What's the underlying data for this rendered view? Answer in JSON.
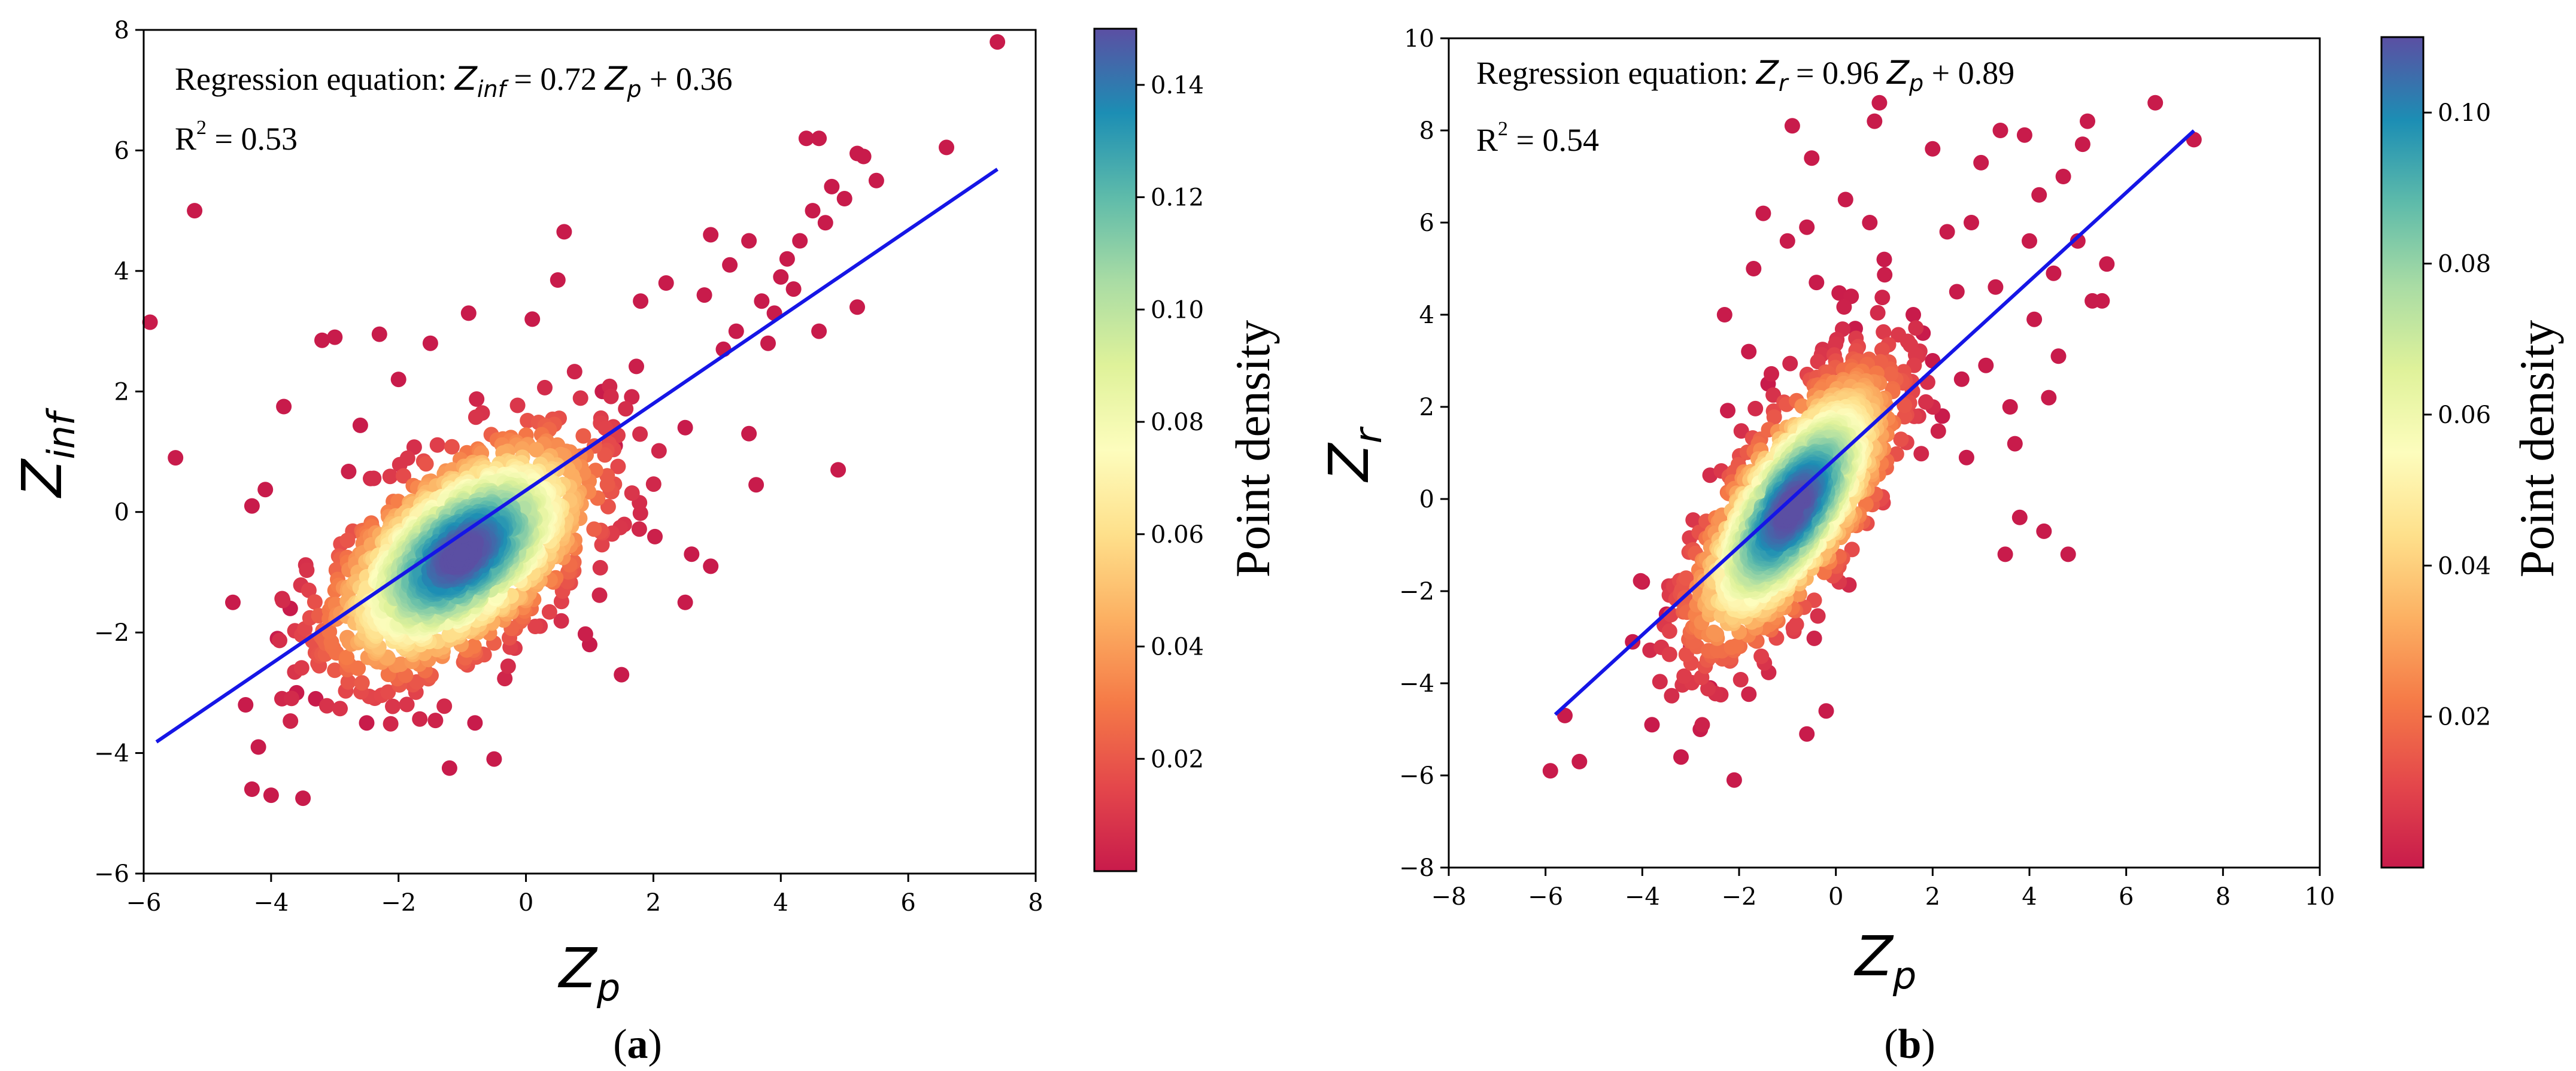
{
  "chart_data": [
    {
      "type": "scatter",
      "panel_label": "a",
      "xlabel": "Z",
      "xlabel_sub": "p",
      "ylabel": "Z",
      "ylabel_sub": "inf",
      "xlim": [
        -6,
        8
      ],
      "ylim": [
        -6,
        8
      ],
      "xticks": [
        -6,
        -4,
        -2,
        0,
        2,
        4,
        6,
        8
      ],
      "yticks": [
        -6,
        -4,
        -2,
        0,
        2,
        4,
        6,
        8
      ],
      "regression": {
        "prefix": "Regression equation: ",
        "lhs": "Z",
        "lhs_sub": "inf",
        "mid": " = 0.72 ",
        "var": "Z",
        "var_sub": "p",
        "suffix": " + 0.36",
        "slope": 0.72,
        "intercept": 0.36,
        "x_range": [
          -5.8,
          7.4
        ]
      },
      "r2": {
        "prefix": "R",
        "sup": "2",
        "suffix": " = 0.53",
        "value": 0.53
      },
      "colorbar": {
        "label": "Point density",
        "range": [
          0.0,
          0.15
        ],
        "ticks": [
          0.02,
          0.04,
          0.06,
          0.08,
          0.1,
          0.12,
          0.14
        ],
        "tick_labels": [
          "0.02",
          "0.04",
          "0.06",
          "0.08",
          "0.10",
          "0.12",
          "0.14"
        ]
      },
      "cluster": {
        "center": [
          -1.0,
          -0.7
        ],
        "sx": 1.0,
        "sy": 0.95,
        "rho": 0.55,
        "n": 1600,
        "seed": 11
      },
      "outliers": [
        [
          -5.9,
          3.15
        ],
        [
          -5.5,
          0.9
        ],
        [
          -5.2,
          5.0
        ],
        [
          -4.3,
          0.1
        ],
        [
          -4.0,
          -4.7
        ],
        [
          -4.3,
          -4.6
        ],
        [
          -4.2,
          -3.9
        ],
        [
          -3.8,
          1.75
        ],
        [
          -3.5,
          -4.75
        ],
        [
          -3.6,
          -3.0
        ],
        [
          -3.2,
          2.85
        ],
        [
          -3.0,
          2.9
        ],
        [
          -2.3,
          2.95
        ],
        [
          -1.2,
          -4.25
        ],
        [
          -0.5,
          -4.1
        ],
        [
          -0.8,
          -3.5
        ],
        [
          0.5,
          3.85
        ],
        [
          0.6,
          4.65
        ],
        [
          1.5,
          -2.7
        ],
        [
          1.0,
          -2.2
        ],
        [
          2.8,
          3.6
        ],
        [
          2.9,
          4.6
        ],
        [
          2.5,
          1.4
        ],
        [
          2.5,
          -1.5
        ],
        [
          2.6,
          -0.7
        ],
        [
          2.9,
          -0.9
        ],
        [
          3.5,
          4.5
        ],
        [
          3.5,
          1.3
        ],
        [
          3.7,
          3.5
        ],
        [
          4.0,
          3.9
        ],
        [
          4.2,
          3.7
        ],
        [
          4.4,
          6.2
        ],
        [
          4.6,
          6.2
        ],
        [
          4.5,
          5.0
        ],
        [
          4.7,
          4.8
        ],
        [
          4.9,
          0.7
        ],
        [
          5.0,
          5.2
        ],
        [
          5.2,
          5.95
        ],
        [
          5.3,
          5.9
        ],
        [
          5.2,
          3.4
        ],
        [
          5.5,
          5.5
        ],
        [
          6.6,
          6.05
        ],
        [
          7.4,
          7.8
        ],
        [
          3.1,
          2.7
        ],
        [
          3.3,
          3.0
        ],
        [
          4.1,
          4.2
        ],
        [
          3.9,
          3.3
        ],
        [
          4.3,
          4.5
        ],
        [
          2.2,
          3.8
        ],
        [
          1.8,
          3.5
        ],
        [
          -2.5,
          -3.5
        ],
        [
          -3.3,
          -3.1
        ],
        [
          -4.4,
          -3.2
        ],
        [
          -4.6,
          -1.5
        ],
        [
          -3.7,
          -1.6
        ],
        [
          -3.9,
          -2.1
        ],
        [
          0.1,
          3.2
        ],
        [
          -0.9,
          3.3
        ],
        [
          -1.5,
          2.8
        ],
        [
          -2.0,
          2.2
        ],
        [
          1.2,
          2.0
        ],
        [
          1.4,
          1.1
        ],
        [
          3.2,
          4.1
        ],
        [
          4.8,
          5.4
        ],
        [
          3.8,
          2.8
        ],
        [
          4.6,
          3.0
        ]
      ]
    },
    {
      "type": "scatter",
      "panel_label": "b",
      "xlabel": "Z",
      "xlabel_sub": "p",
      "ylabel": "Z",
      "ylabel_sub": "r",
      "xlim": [
        -8,
        10
      ],
      "ylim": [
        -8,
        10
      ],
      "xticks": [
        -8,
        -6,
        -4,
        -2,
        0,
        2,
        4,
        6,
        8,
        10
      ],
      "yticks": [
        -8,
        -6,
        -4,
        -2,
        0,
        2,
        4,
        6,
        8,
        10
      ],
      "regression": {
        "prefix": "Regression equation: ",
        "lhs": "Z",
        "lhs_sub": "r",
        "mid": " = 0.96 ",
        "var": "Z",
        "var_sub": "p",
        "suffix": " + 0.89",
        "slope": 0.96,
        "intercept": 0.89,
        "x_range": [
          -5.8,
          7.4
        ]
      },
      "r2": {
        "prefix": "R",
        "sup": "2",
        "suffix": " = 0.54",
        "value": 0.54
      },
      "colorbar": {
        "label": "Point density",
        "range": [
          0.0,
          0.11
        ],
        "ticks": [
          0.02,
          0.04,
          0.06,
          0.08,
          0.1
        ],
        "tick_labels": [
          "0.02",
          "0.04",
          "0.06",
          "0.08",
          "0.10"
        ]
      },
      "cluster": {
        "center": [
          -0.9,
          -0.2
        ],
        "sx": 1.0,
        "sy": 1.45,
        "rho": 0.7,
        "n": 1600,
        "seed": 23
      },
      "outliers": [
        [
          -5.9,
          -5.9
        ],
        [
          -5.6,
          -4.7
        ],
        [
          -5.3,
          -5.7
        ],
        [
          -4.2,
          -3.1
        ],
        [
          -4.0,
          -1.8
        ],
        [
          -3.8,
          -4.9
        ],
        [
          -3.2,
          -5.6
        ],
        [
          -3.0,
          -3.2
        ],
        [
          -2.1,
          -6.1
        ],
        [
          -2.3,
          4.0
        ],
        [
          -1.7,
          5.0
        ],
        [
          -1.5,
          6.2
        ],
        [
          -1.4,
          2.5
        ],
        [
          -0.9,
          8.1
        ],
        [
          -0.5,
          7.4
        ],
        [
          -0.6,
          5.9
        ],
        [
          -0.4,
          4.7
        ],
        [
          0.8,
          8.2
        ],
        [
          0.9,
          8.6
        ],
        [
          0.7,
          6.0
        ],
        [
          0.4,
          3.7
        ],
        [
          -0.2,
          -4.6
        ],
        [
          -0.6,
          -5.1
        ],
        [
          1.0,
          5.2
        ],
        [
          2.0,
          7.6
        ],
        [
          1.8,
          3.6
        ],
        [
          2.5,
          4.5
        ],
        [
          2.3,
          5.8
        ],
        [
          2.8,
          6.0
        ],
        [
          3.0,
          7.3
        ],
        [
          3.3,
          4.6
        ],
        [
          3.4,
          8.0
        ],
        [
          3.6,
          2.0
        ],
        [
          3.5,
          -1.2
        ],
        [
          3.8,
          -0.4
        ],
        [
          3.9,
          7.9
        ],
        [
          4.0,
          5.6
        ],
        [
          4.2,
          6.6
        ],
        [
          4.1,
          3.9
        ],
        [
          4.3,
          -0.7
        ],
        [
          4.5,
          4.9
        ],
        [
          4.6,
          3.1
        ],
        [
          4.7,
          7.0
        ],
        [
          4.8,
          -1.2
        ],
        [
          5.0,
          5.6
        ],
        [
          5.1,
          7.7
        ],
        [
          5.2,
          8.2
        ],
        [
          5.3,
          4.3
        ],
        [
          5.5,
          4.3
        ],
        [
          5.6,
          5.1
        ],
        [
          6.6,
          8.6
        ],
        [
          7.4,
          7.8
        ],
        [
          2.6,
          2.6
        ],
        [
          2.2,
          1.8
        ],
        [
          3.1,
          2.9
        ],
        [
          1.6,
          4.0
        ],
        [
          2.7,
          0.9
        ],
        [
          3.7,
          1.2
        ],
        [
          4.4,
          2.2
        ],
        [
          2.0,
          3.0
        ],
        [
          -2.6,
          -4.1
        ],
        [
          -3.5,
          -2.5
        ],
        [
          -2.8,
          -5.0
        ],
        [
          -1.0,
          5.6
        ],
        [
          -1.8,
          3.2
        ],
        [
          0.2,
          6.5
        ]
      ]
    }
  ]
}
